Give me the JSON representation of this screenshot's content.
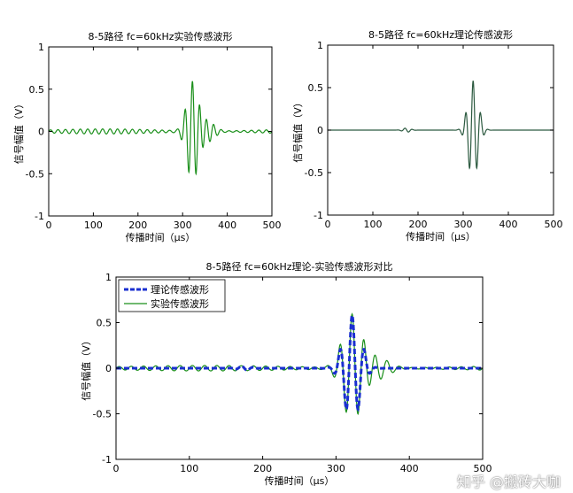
{
  "colors": {
    "experiment_green": "#1a8f1a",
    "theory_dark": "#2c5a40",
    "theory_blue": "#1a2fd0"
  },
  "watermark": "知乎 @搬砖大咖",
  "chart_data": [
    {
      "id": "top-left",
      "type": "line",
      "title": "8-5路径 fc=60kHz实验传感波形",
      "xlabel": "传播时间（μs）",
      "ylabel": "信号幅值（V）",
      "xlim": [
        0,
        500
      ],
      "ylim": [
        -1,
        1
      ],
      "xticks": [
        "0",
        "100",
        "200",
        "300",
        "400",
        "500"
      ],
      "yticks": [
        "1",
        "0.5",
        "0",
        "-0.5",
        "-1"
      ],
      "grid": false,
      "series": [
        {
          "kind": "experiment",
          "color": "#1a8f1a",
          "x": [
            0,
            20,
            40,
            60,
            80,
            100,
            120,
            140,
            160,
            180,
            200,
            220,
            240,
            260,
            280,
            290,
            300,
            305,
            310,
            315,
            320,
            325,
            330,
            335,
            340,
            345,
            350,
            360,
            370,
            380,
            390,
            400,
            420,
            440,
            460,
            480,
            500
          ],
          "y": [
            0,
            0.01,
            -0.02,
            0.02,
            -0.03,
            0.03,
            -0.02,
            0.03,
            -0.02,
            0.03,
            -0.03,
            0.04,
            -0.04,
            0.05,
            -0.06,
            0.09,
            -0.15,
            0.3,
            -0.42,
            0.55,
            -0.52,
            0.6,
            -0.55,
            0.45,
            -0.3,
            0.18,
            -0.12,
            0.08,
            -0.06,
            0.04,
            -0.04,
            0.03,
            -0.03,
            0.03,
            -0.02,
            0.02,
            0
          ]
        }
      ]
    },
    {
      "id": "top-right",
      "type": "line",
      "title": "8-5路径 fc=60kHz理论传感波形",
      "xlabel": "传播时间（μs）",
      "ylabel": "信号幅值（V）",
      "xlim": [
        0,
        500
      ],
      "ylim": [
        -1,
        1
      ],
      "xticks": [
        "0",
        "100",
        "200",
        "300",
        "400",
        "500"
      ],
      "yticks": [
        "1",
        "0.5",
        "0",
        "-0.5",
        "-1"
      ],
      "grid": false,
      "series": [
        {
          "kind": "theory",
          "color": "#2c5a40",
          "x": [
            0,
            145,
            160,
            170,
            180,
            190,
            200,
            210,
            280,
            290,
            295,
            300,
            305,
            310,
            315,
            320,
            325,
            330,
            335,
            340,
            345,
            350,
            355,
            360,
            370,
            500
          ],
          "y": [
            0,
            0,
            0.02,
            -0.02,
            0.02,
            -0.02,
            0.01,
            0,
            0,
            -0.05,
            0.12,
            -0.3,
            0.42,
            -0.5,
            0.55,
            -0.48,
            0.58,
            -0.52,
            0.4,
            -0.3,
            0.2,
            -0.1,
            0.05,
            -0.02,
            0,
            0
          ]
        }
      ]
    },
    {
      "id": "bottom",
      "type": "line",
      "title": "8-5路径 fc=60kHz理论-实验传感波形对比",
      "xlabel": "传播时间（μs）",
      "ylabel": "信号幅值（V）",
      "xlim": [
        0,
        500
      ],
      "ylim": [
        -1,
        1
      ],
      "xticks": [
        "0",
        "100",
        "200",
        "300",
        "400",
        "500"
      ],
      "yticks": [
        "1",
        "0.5",
        "0",
        "-0.5",
        "-1"
      ],
      "grid": false,
      "legend_position": "top-left",
      "series": [
        {
          "name": "理论传感波形",
          "kind": "theory",
          "style": "dashed",
          "color": "#1a2fd0",
          "x": [
            0,
            145,
            160,
            170,
            180,
            190,
            200,
            210,
            280,
            290,
            295,
            300,
            305,
            310,
            315,
            320,
            325,
            330,
            335,
            340,
            345,
            350,
            355,
            360,
            370,
            500
          ],
          "y": [
            0,
            0,
            0.02,
            -0.02,
            0.02,
            -0.02,
            0.01,
            0,
            0,
            -0.05,
            0.12,
            -0.3,
            0.42,
            -0.5,
            0.55,
            -0.48,
            0.58,
            -0.52,
            0.4,
            -0.3,
            0.2,
            -0.1,
            0.05,
            -0.02,
            0,
            0
          ]
        },
        {
          "name": "实验传感波形",
          "kind": "experiment",
          "style": "solid",
          "color": "#1a8f1a",
          "x": [
            0,
            20,
            40,
            60,
            80,
            100,
            120,
            140,
            160,
            180,
            200,
            220,
            240,
            260,
            280,
            290,
            300,
            305,
            310,
            315,
            320,
            325,
            330,
            335,
            340,
            345,
            350,
            360,
            370,
            380,
            390,
            400,
            420,
            440,
            460,
            480,
            500
          ],
          "y": [
            0,
            0.01,
            -0.02,
            0.02,
            -0.03,
            0.03,
            -0.02,
            0.03,
            -0.02,
            0.03,
            -0.03,
            0.04,
            -0.04,
            0.05,
            -0.06,
            0.09,
            -0.15,
            0.3,
            -0.42,
            0.55,
            -0.52,
            0.6,
            -0.55,
            0.45,
            -0.3,
            0.18,
            -0.12,
            0.08,
            -0.06,
            0.04,
            -0.04,
            0.03,
            -0.03,
            0.03,
            -0.02,
            0.02,
            0
          ]
        }
      ]
    }
  ]
}
